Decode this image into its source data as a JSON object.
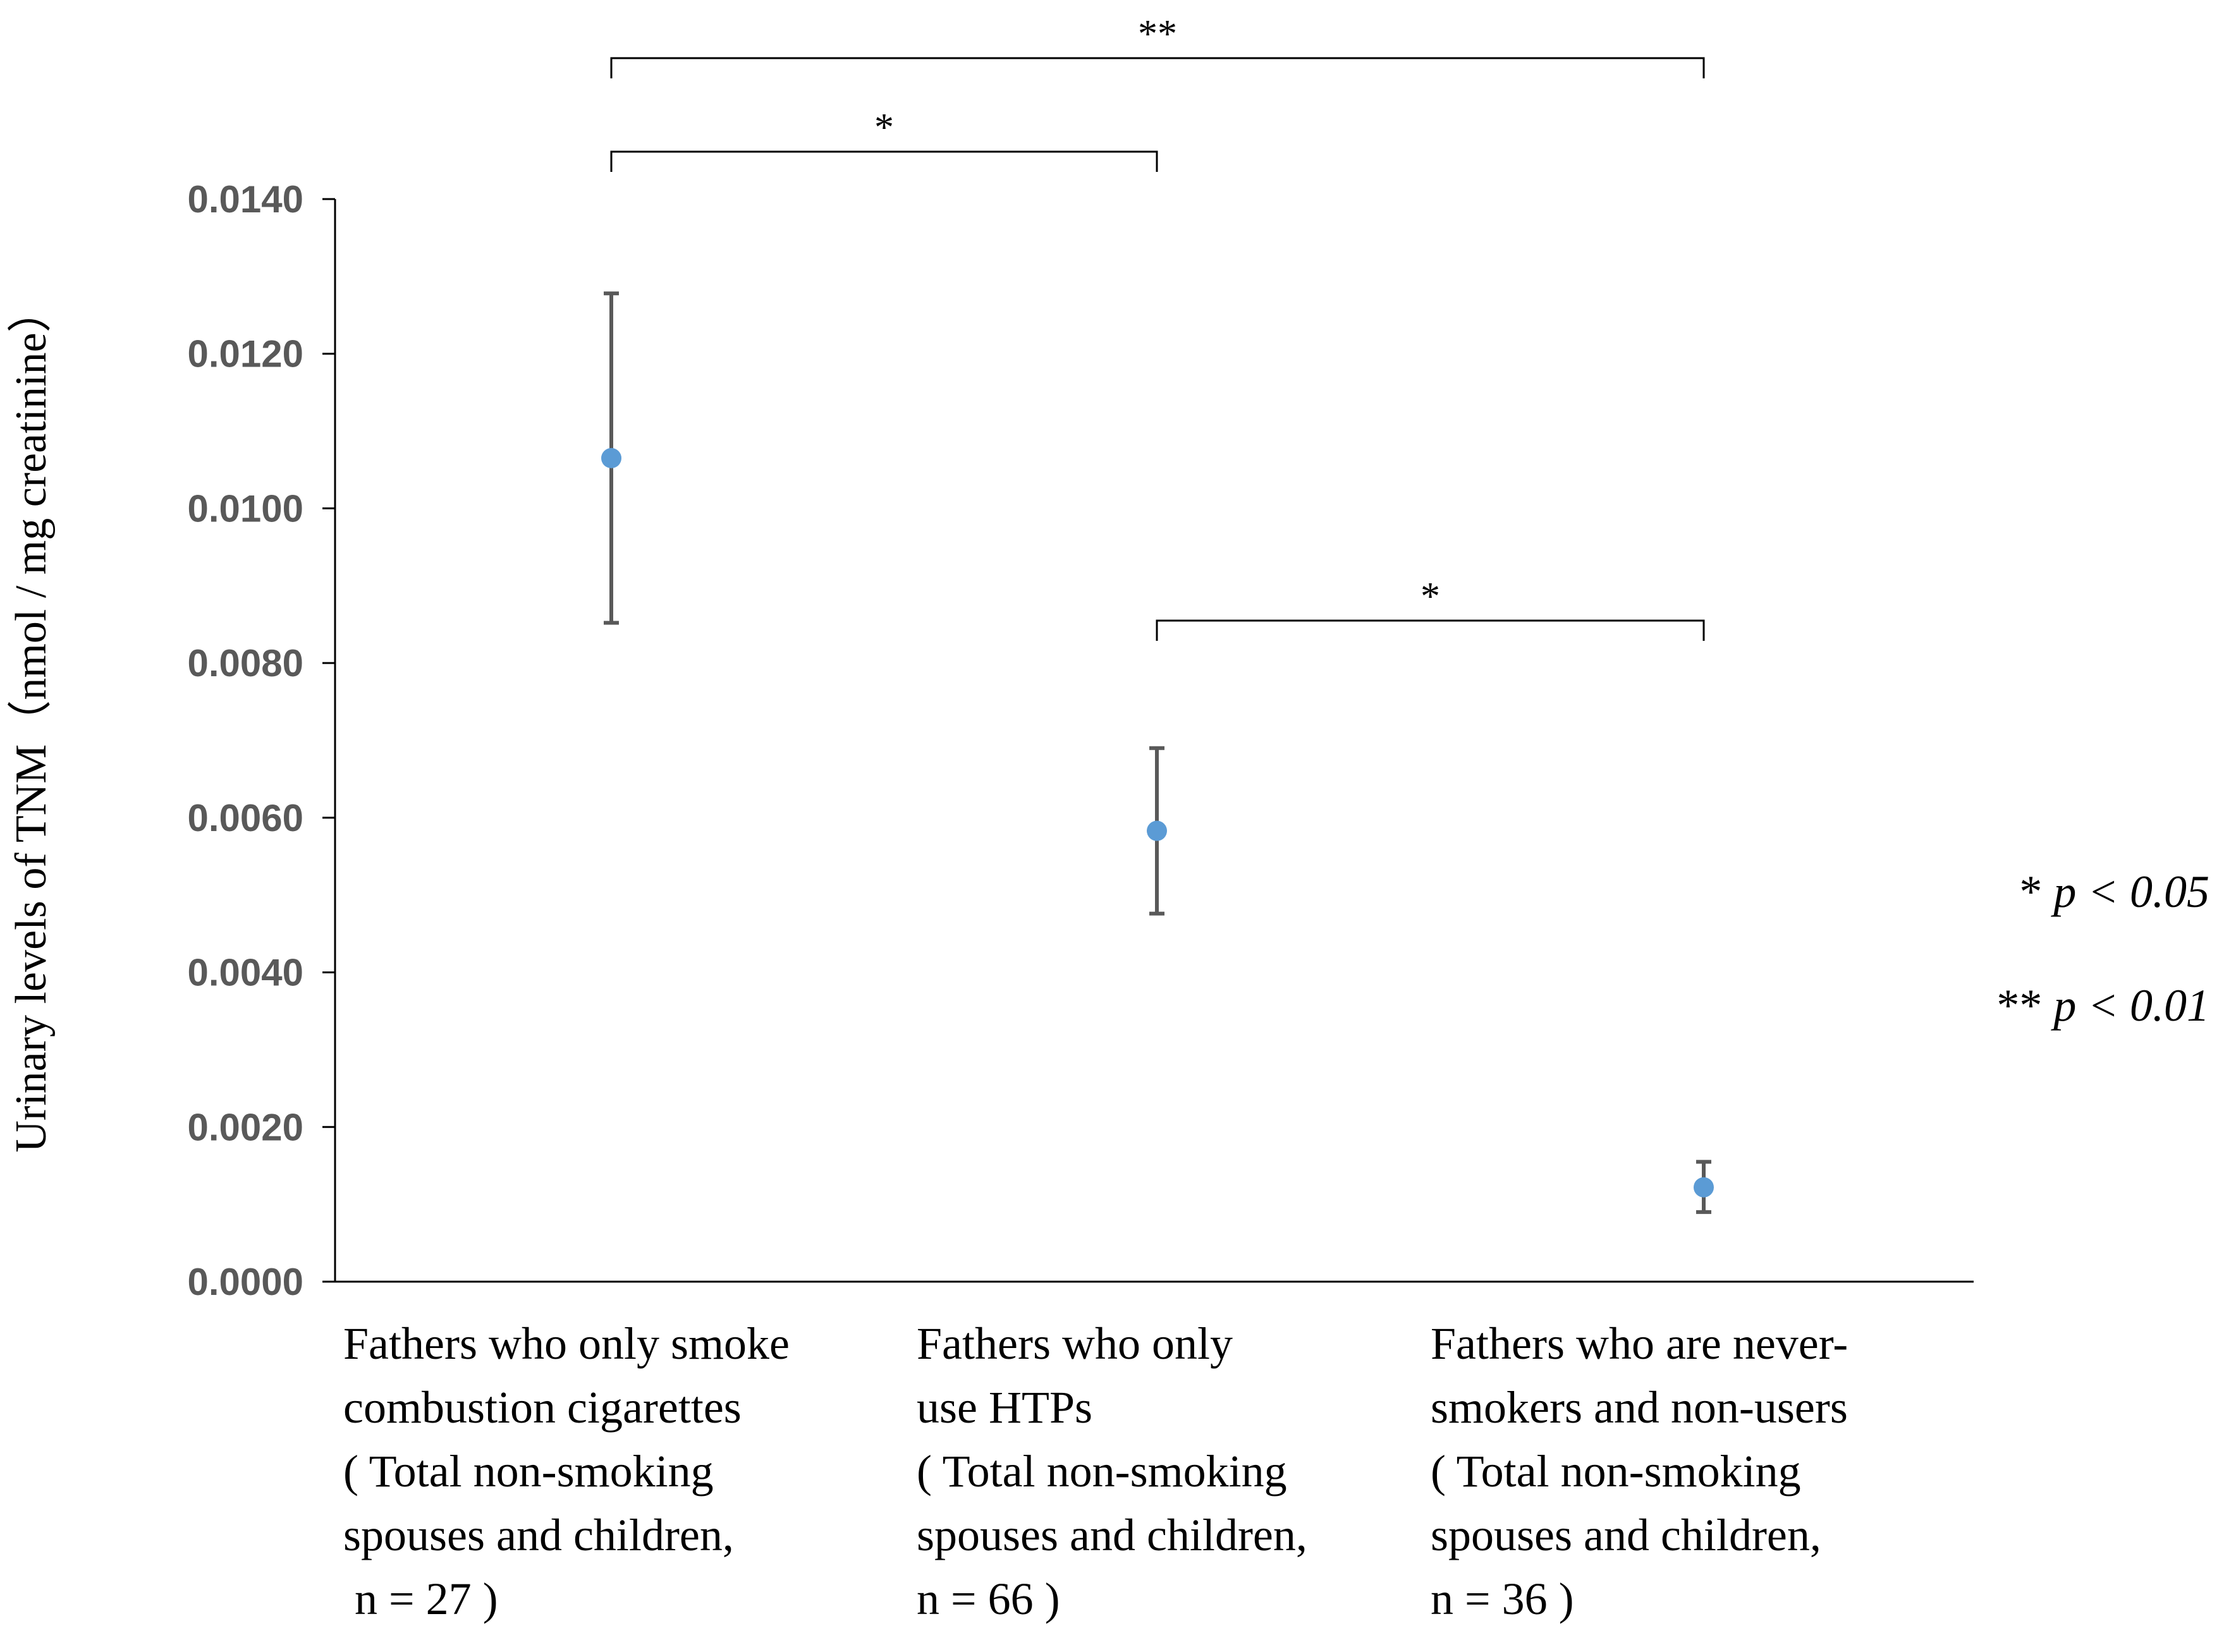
{
  "chart_data": {
    "type": "scatter",
    "ylabel": "Urinary levels of TNM（nmol / mg creatinine）",
    "ylim": [
      0,
      0.014
    ],
    "yticks": [
      "0.0000",
      "0.0020",
      "0.0040",
      "0.0060",
      "0.0080",
      "0.0100",
      "0.0120",
      "0.0140"
    ],
    "grid": false,
    "categories": [
      {
        "lines": [
          "Fathers who only smoke",
          "combustion cigarettes",
          "( Total non-smoking",
          "spouses and children,",
          " n = 27 )"
        ]
      },
      {
        "lines": [
          "Fathers who only",
          "use HTPs",
          "( Total non-smoking",
          "spouses and children,",
          "n = 66 )"
        ]
      },
      {
        "lines": [
          "Fathers who are never-",
          "smokers and non-users",
          "( Total non-smoking",
          "spouses and children,",
          "n = 36 )"
        ]
      }
    ],
    "points": [
      {
        "value": 0.01065,
        "err_low": 0.00852,
        "err_high": 0.01278
      },
      {
        "value": 0.00583,
        "err_low": 0.00476,
        "err_high": 0.0069
      },
      {
        "value": 0.00122,
        "err_low": 0.0009,
        "err_high": 0.00155
      }
    ],
    "marker_color": "#5B9BD5",
    "errorbar_color": "#595959",
    "significance": [
      {
        "from": 0,
        "to": 2,
        "label": "**"
      },
      {
        "from": 0,
        "to": 1,
        "label": "*"
      },
      {
        "from": 1,
        "to": 2,
        "label": "*"
      }
    ],
    "legend": [
      {
        "stars": "*",
        "text": "p < 0.05"
      },
      {
        "stars": "**",
        "text": "p < 0.01"
      }
    ]
  }
}
